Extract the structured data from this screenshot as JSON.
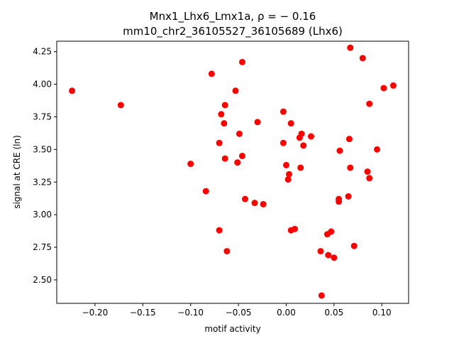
{
  "chart_data": {
    "type": "scatter",
    "title_line1": "Mnx1_Lhx6_Lmx1a, ρ = − 0.16",
    "title_line2": "mm10_chr2_36105527_36105689 (Lhx6)",
    "xlabel": "motif activity",
    "ylabel": "signal at CRE (ln)",
    "xlim": [
      -0.24,
      0.128
    ],
    "ylim": [
      2.32,
      4.33
    ],
    "xticks": [
      -0.2,
      -0.15,
      -0.1,
      -0.05,
      0.0,
      0.05,
      0.1
    ],
    "xtick_labels": [
      "−0.20",
      "−0.15",
      "−0.10",
      "−0.05",
      "0.00",
      "0.05",
      "0.10"
    ],
    "yticks": [
      2.5,
      2.75,
      3.0,
      3.25,
      3.5,
      3.75,
      4.0,
      4.25
    ],
    "ytick_labels": [
      "2.50",
      "2.75",
      "3.00",
      "3.25",
      "3.50",
      "3.75",
      "4.00",
      "4.25"
    ],
    "marker_color": "#ff0000",
    "grid": false,
    "points": [
      {
        "x": -0.224,
        "y": 3.95
      },
      {
        "x": -0.173,
        "y": 3.84
      },
      {
        "x": -0.1,
        "y": 3.39
      },
      {
        "x": -0.084,
        "y": 3.18
      },
      {
        "x": -0.078,
        "y": 4.08
      },
      {
        "x": -0.07,
        "y": 3.55
      },
      {
        "x": -0.068,
        "y": 3.77
      },
      {
        "x": -0.07,
        "y": 2.88
      },
      {
        "x": -0.065,
        "y": 3.7
      },
      {
        "x": -0.064,
        "y": 3.84
      },
      {
        "x": -0.064,
        "y": 3.43
      },
      {
        "x": -0.062,
        "y": 2.72
      },
      {
        "x": -0.053,
        "y": 3.95
      },
      {
        "x": -0.051,
        "y": 3.4
      },
      {
        "x": -0.049,
        "y": 3.62
      },
      {
        "x": -0.046,
        "y": 4.17
      },
      {
        "x": -0.046,
        "y": 3.45
      },
      {
        "x": -0.043,
        "y": 3.12
      },
      {
        "x": -0.033,
        "y": 3.09
      },
      {
        "x": -0.03,
        "y": 3.71
      },
      {
        "x": -0.024,
        "y": 3.08
      },
      {
        "x": -0.003,
        "y": 3.79
      },
      {
        "x": -0.003,
        "y": 3.55
      },
      {
        "x": 0.0,
        "y": 3.38
      },
      {
        "x": 0.002,
        "y": 3.27
      },
      {
        "x": 0.003,
        "y": 3.31
      },
      {
        "x": 0.005,
        "y": 3.7
      },
      {
        "x": 0.005,
        "y": 2.88
      },
      {
        "x": 0.009,
        "y": 2.89
      },
      {
        "x": 0.014,
        "y": 3.59
      },
      {
        "x": 0.016,
        "y": 3.62
      },
      {
        "x": 0.015,
        "y": 3.36
      },
      {
        "x": 0.018,
        "y": 3.53
      },
      {
        "x": 0.026,
        "y": 3.6
      },
      {
        "x": 0.036,
        "y": 2.72
      },
      {
        "x": 0.037,
        "y": 2.38
      },
      {
        "x": 0.043,
        "y": 2.85
      },
      {
        "x": 0.044,
        "y": 2.69
      },
      {
        "x": 0.047,
        "y": 2.87
      },
      {
        "x": 0.05,
        "y": 2.67
      },
      {
        "x": 0.055,
        "y": 3.1
      },
      {
        "x": 0.055,
        "y": 3.12
      },
      {
        "x": 0.056,
        "y": 3.49
      },
      {
        "x": 0.065,
        "y": 3.14
      },
      {
        "x": 0.066,
        "y": 3.58
      },
      {
        "x": 0.067,
        "y": 4.28
      },
      {
        "x": 0.067,
        "y": 3.36
      },
      {
        "x": 0.071,
        "y": 2.76
      },
      {
        "x": 0.08,
        "y": 4.2
      },
      {
        "x": 0.085,
        "y": 3.33
      },
      {
        "x": 0.087,
        "y": 3.28
      },
      {
        "x": 0.087,
        "y": 3.85
      },
      {
        "x": 0.095,
        "y": 3.5
      },
      {
        "x": 0.102,
        "y": 3.97
      },
      {
        "x": 0.112,
        "y": 3.99
      }
    ]
  }
}
